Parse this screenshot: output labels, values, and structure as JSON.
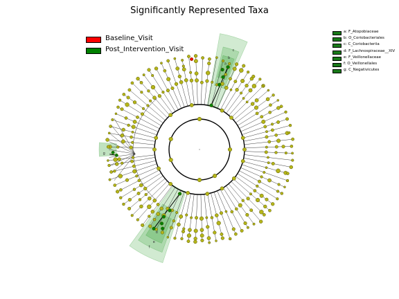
{
  "title": "Significantly Represented Taxa",
  "colors": {
    "baseline": "#ff0000",
    "post": "#008000",
    "node": "#b5b51a",
    "node_stroke": "#555500",
    "sector_fill": "#2e9e2e",
    "swatch_green": "#1a7a1a"
  },
  "group_legend": [
    {
      "label": "Baseline_Visit",
      "color": "#ff0000"
    },
    {
      "label": "Post_Intervention_Visit",
      "color": "#008000"
    }
  ],
  "clade_legend": [
    {
      "label": "a: F_Atopobiaceae"
    },
    {
      "label": "b: O_Coriobacteriales"
    },
    {
      "label": "c: C_Coriobacteriia"
    },
    {
      "label": "d: F_Lachnospiraceae__XIV"
    },
    {
      "label": "e: F_Veillonellaceae"
    },
    {
      "label": "f: O_Veillonellales"
    },
    {
      "label": "g: C_Negativicutes"
    }
  ],
  "sector_letters": [
    "a",
    "b",
    "c",
    "d",
    "e",
    "f",
    "g"
  ]
}
